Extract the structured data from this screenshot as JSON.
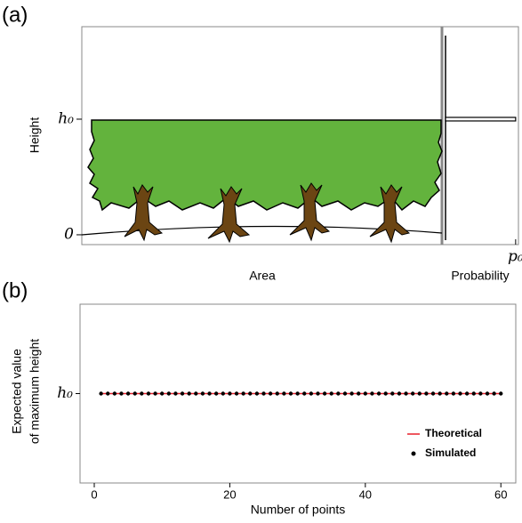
{
  "chart_data": [
    {
      "type": "diagram",
      "panel_label": "(a)",
      "ylabel": "Height",
      "xlabel": "Area",
      "x2label": "Probability",
      "ylim": [
        -0.085,
        1.8
      ],
      "yticks": [
        {
          "value": 1,
          "label": "h₀"
        },
        0
      ],
      "x2lim": [
        0,
        1.04
      ],
      "x2ticks": [
        {
          "value": 1,
          "label": "p₀"
        }
      ],
      "heights": [
        1
      ],
      "values": [
        1
      ]
    },
    {
      "type": "line",
      "panel_label": "(b)",
      "ylabel": [
        "Expected  value",
        "of maximum height"
      ],
      "xlabel": "Number of points",
      "xlim": [
        -2.1,
        62.2
      ],
      "xticks": [
        0,
        20,
        40,
        60
      ],
      "ylim": [
        0,
        2
      ],
      "yticks": [
        {
          "value": 1,
          "label": "h₀"
        }
      ],
      "legend": "bottom-right",
      "x": [
        1,
        2,
        3,
        4,
        5,
        6,
        7,
        8,
        9,
        10,
        11,
        12,
        13,
        14,
        15,
        16,
        17,
        18,
        19,
        20,
        21,
        22,
        23,
        24,
        25,
        26,
        27,
        28,
        29,
        30,
        31,
        32,
        33,
        34,
        35,
        36,
        37,
        38,
        39,
        40,
        41,
        42,
        43,
        44,
        45,
        46,
        47,
        48,
        49,
        50,
        51,
        52,
        53,
        54,
        55,
        56,
        57,
        58,
        59,
        60
      ],
      "series": [
        {
          "name": "Theoretical",
          "color": "#e8202a",
          "mode": "line",
          "values": [
            1,
            1,
            1,
            1,
            1,
            1,
            1,
            1,
            1,
            1,
            1,
            1,
            1,
            1,
            1,
            1,
            1,
            1,
            1,
            1,
            1,
            1,
            1,
            1,
            1,
            1,
            1,
            1,
            1,
            1,
            1,
            1,
            1,
            1,
            1,
            1,
            1,
            1,
            1,
            1,
            1,
            1,
            1,
            1,
            1,
            1,
            1,
            1,
            1,
            1,
            1,
            1,
            1,
            1,
            1,
            1,
            1,
            1,
            1,
            1
          ]
        },
        {
          "name": "Simulated",
          "color": "#000000",
          "mode": "points",
          "values": [
            1,
            1,
            1,
            1,
            1,
            1,
            1,
            1,
            1,
            1,
            1,
            1,
            1,
            1,
            1,
            1,
            1,
            1,
            1,
            1,
            1,
            1,
            1,
            1,
            1,
            1,
            1,
            1,
            1,
            1,
            1,
            1,
            1,
            1,
            1,
            1,
            1,
            1,
            1,
            1,
            1,
            1,
            1,
            1,
            1,
            1,
            1,
            1,
            1,
            1,
            1,
            1,
            1,
            1,
            1,
            1,
            1,
            1,
            1,
            1
          ]
        }
      ]
    }
  ]
}
